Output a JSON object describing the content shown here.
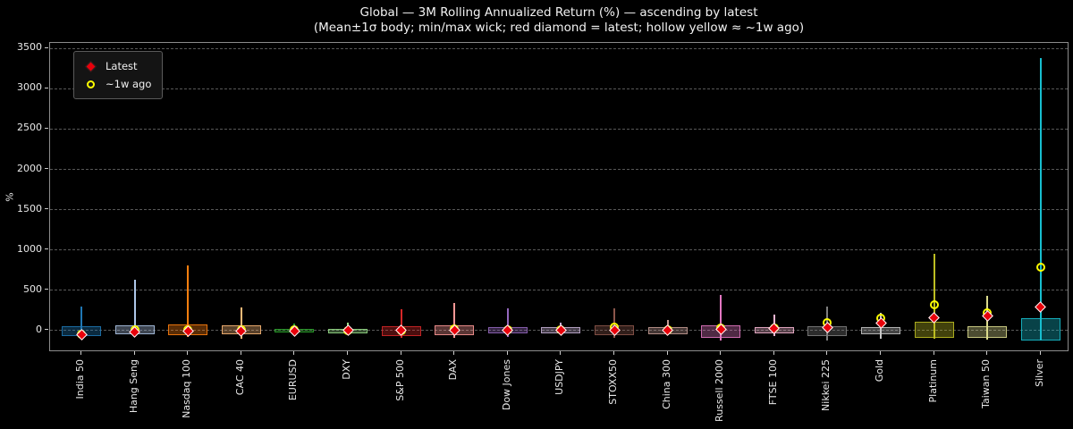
{
  "window": {
    "background": "#000000",
    "plot_border": "#8c8c8c",
    "grid_color": "#585858"
  },
  "chart_data": {
    "type": "boxwhisker",
    "title": "Global — 3M Rolling Annualized Return (%) — ascending by latest",
    "subtitle": "(Mean±1σ body; min/max wick; red diamond = latest; hollow yellow ≈ ~1w ago)",
    "ylabel": "%",
    "ylim": [
      -272,
      3564
    ],
    "yticks": [
      0,
      500,
      1000,
      1500,
      2000,
      2500,
      3000,
      3500
    ],
    "grid": "horizontal-dashed",
    "legend": {
      "position": "upper-left",
      "items": [
        {
          "label": "Latest",
          "marker": "red-diamond",
          "color": "#e8000b",
          "edge": "#ffffff"
        },
        {
          "label": "~1w ago",
          "marker": "hollow-circle",
          "color": "#ffff00"
        }
      ]
    },
    "categories": [
      "India 50",
      "Hang Seng",
      "Nasdaq 100",
      "CAC 40",
      "EURUSD",
      "DXY",
      "S&P 500",
      "DAX",
      "Dow Jones",
      "USDJPY",
      "STOXX50",
      "China 300",
      "Russell 2000",
      "FTSE 100",
      "Nikkei 225",
      "Gold",
      "Platinum",
      "Taiwan 50",
      "Silver"
    ],
    "series": [
      {
        "name": "India 50",
        "color": "#1f77b4",
        "body_lo": -70,
        "body_hi": 50,
        "min": -85,
        "max": 295,
        "latest": -55,
        "week_ago": -45
      },
      {
        "name": "Hang Seng",
        "color": "#aec7e8",
        "body_lo": -55,
        "body_hi": 58,
        "min": -75,
        "max": 630,
        "latest": -18,
        "week_ago": 5
      },
      {
        "name": "Nasdaq 100",
        "color": "#ff7f0e",
        "body_lo": -65,
        "body_hi": 76,
        "min": -80,
        "max": 805,
        "latest": -12,
        "week_ago": 10
      },
      {
        "name": "CAC 40",
        "color": "#ffbb78",
        "body_lo": -55,
        "body_hi": 58,
        "min": -105,
        "max": 285,
        "latest": -8,
        "week_ago": 6
      },
      {
        "name": "EURUSD",
        "color": "#2ca02c",
        "body_lo": -25,
        "body_hi": 18,
        "min": -40,
        "max": 85,
        "latest": -6,
        "week_ago": 0
      },
      {
        "name": "DXY",
        "color": "#98df8a",
        "body_lo": -36,
        "body_hi": 18,
        "min": -45,
        "max": 95,
        "latest": -5,
        "week_ago": -2
      },
      {
        "name": "S&P 500",
        "color": "#d62728",
        "body_lo": -70,
        "body_hi": 47,
        "min": -90,
        "max": 260,
        "latest": -4,
        "week_ago": -4
      },
      {
        "name": "DAX",
        "color": "#ff9896",
        "body_lo": -60,
        "body_hi": 58,
        "min": -90,
        "max": 340,
        "latest": -2,
        "week_ago": 12
      },
      {
        "name": "Dow Jones",
        "color": "#9467bd",
        "body_lo": -42,
        "body_hi": 40,
        "min": -80,
        "max": 270,
        "latest": -1,
        "week_ago": 6
      },
      {
        "name": "USDJPY",
        "color": "#c5b0d5",
        "body_lo": -36,
        "body_hi": 40,
        "min": -50,
        "max": 95,
        "latest": 1,
        "week_ago": 9
      },
      {
        "name": "STOXX50",
        "color": "#8c564b",
        "body_lo": -65,
        "body_hi": 58,
        "min": -90,
        "max": 270,
        "latest": 3,
        "week_ago": 38
      },
      {
        "name": "China 300",
        "color": "#c49c94",
        "body_lo": -52,
        "body_hi": 40,
        "min": -60,
        "max": 130,
        "latest": 5,
        "week_ago": 6
      },
      {
        "name": "Russell 2000",
        "color": "#e377c2",
        "body_lo": -90,
        "body_hi": 64,
        "min": -128,
        "max": 440,
        "latest": 16,
        "week_ago": 28
      },
      {
        "name": "FTSE 100",
        "color": "#f7b6d2",
        "body_lo": -42,
        "body_hi": 40,
        "min": -70,
        "max": 195,
        "latest": 20,
        "week_ago": 22
      },
      {
        "name": "Nikkei 225",
        "color": "#7f7f7f",
        "body_lo": -70,
        "body_hi": 47,
        "min": -128,
        "max": 298,
        "latest": 28,
        "week_ago": 94
      },
      {
        "name": "Gold",
        "color": "#c7c7c7",
        "body_lo": -47,
        "body_hi": 40,
        "min": -108,
        "max": 213,
        "latest": 87,
        "week_ago": 150
      },
      {
        "name": "Platinum",
        "color": "#bcbd22",
        "body_lo": -100,
        "body_hi": 102,
        "min": -110,
        "max": 950,
        "latest": 158,
        "week_ago": 317
      },
      {
        "name": "Taiwan 50",
        "color": "#dbdb8d",
        "body_lo": -90,
        "body_hi": 47,
        "min": -115,
        "max": 428,
        "latest": 180,
        "week_ago": 217
      },
      {
        "name": "Silver",
        "color": "#17becf",
        "body_lo": -128,
        "body_hi": 150,
        "min": -128,
        "max": 3375,
        "latest": 291,
        "week_ago": 783
      }
    ]
  }
}
